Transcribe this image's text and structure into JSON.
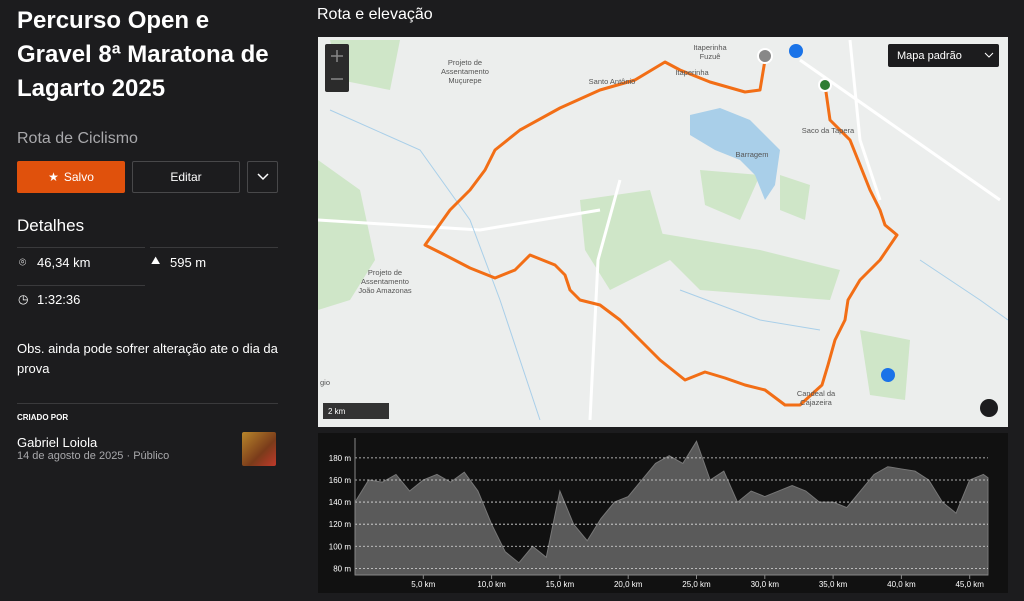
{
  "header": {
    "title": "Percurso Open e Gravel 8ª Maratona de Lagarto 2025",
    "subtitle": "Rota de Ciclismo"
  },
  "buttons": {
    "saved": "Salvo",
    "edit": "Editar"
  },
  "details": {
    "heading": "Detalhes",
    "distance": "46,34 km",
    "elevation": "595 m",
    "time": "1:32:36",
    "note": "Obs. ainda pode sofrer alteração ate o dia da prova"
  },
  "creator": {
    "label": "CRIADO POR",
    "name": "Gabriel Loiola",
    "date": "14 de agosto de 2025",
    "visibility": "Público"
  },
  "section_title": "Rota e elevação",
  "map": {
    "style": "Mapa padrão",
    "scale": "2 km",
    "places": [
      [
        "Projeto de",
        "Assentamento",
        "Muçurepe"
      ],
      [
        "Itaperinha",
        "Fuzuê"
      ],
      [
        "Santo Antônio"
      ],
      [
        "Itaperinha"
      ],
      [
        "Saco da Tapera"
      ],
      [
        "Barragem"
      ],
      [
        "Projeto de",
        "Assentamento",
        "João Amazonas"
      ],
      [
        "Candeal da",
        "Cajazeira"
      ],
      [
        "gio"
      ]
    ]
  },
  "chart_data": {
    "type": "area",
    "color": "#5a5a5a",
    "x": [
      0,
      1,
      2,
      3,
      4,
      5,
      6,
      7,
      8,
      9,
      10,
      11,
      12,
      13,
      14,
      15,
      16,
      17,
      18,
      19,
      20,
      21,
      22,
      23,
      24,
      25,
      26,
      27,
      28,
      29,
      30,
      31,
      32,
      33,
      34,
      35,
      36,
      37,
      38,
      39,
      40,
      41,
      42,
      43,
      44,
      45,
      46,
      46.34
    ],
    "values": [
      140,
      160,
      158,
      165,
      150,
      160,
      165,
      158,
      167,
      150,
      120,
      95,
      85,
      100,
      90,
      150,
      120,
      105,
      125,
      140,
      145,
      160,
      175,
      182,
      175,
      195,
      160,
      168,
      140,
      150,
      145,
      150,
      155,
      150,
      140,
      140,
      135,
      150,
      165,
      172,
      170,
      168,
      160,
      140,
      130,
      160,
      165,
      162
    ],
    "xlim": [
      0,
      46.34
    ],
    "ylim": [
      74,
      198
    ],
    "xticks": [
      {
        "value": 5,
        "label": "5,0 km"
      },
      {
        "value": 10,
        "label": "10,0 km"
      },
      {
        "value": 15,
        "label": "15,0 km"
      },
      {
        "value": 20,
        "label": "20,0 km"
      },
      {
        "value": 25,
        "label": "25,0 km"
      },
      {
        "value": 30,
        "label": "30,0 km"
      },
      {
        "value": 35,
        "label": "35,0 km"
      },
      {
        "value": 40,
        "label": "40,0 km"
      },
      {
        "value": 45,
        "label": "45,0 km"
      }
    ],
    "yticks": [
      {
        "value": 80,
        "label": "80 m"
      },
      {
        "value": 100,
        "label": "100 m"
      },
      {
        "value": 120,
        "label": "120 m"
      },
      {
        "value": 140,
        "label": "140 m"
      },
      {
        "value": 160,
        "label": "160 m"
      },
      {
        "value": 180,
        "label": "180 m"
      }
    ],
    "grid": true
  }
}
